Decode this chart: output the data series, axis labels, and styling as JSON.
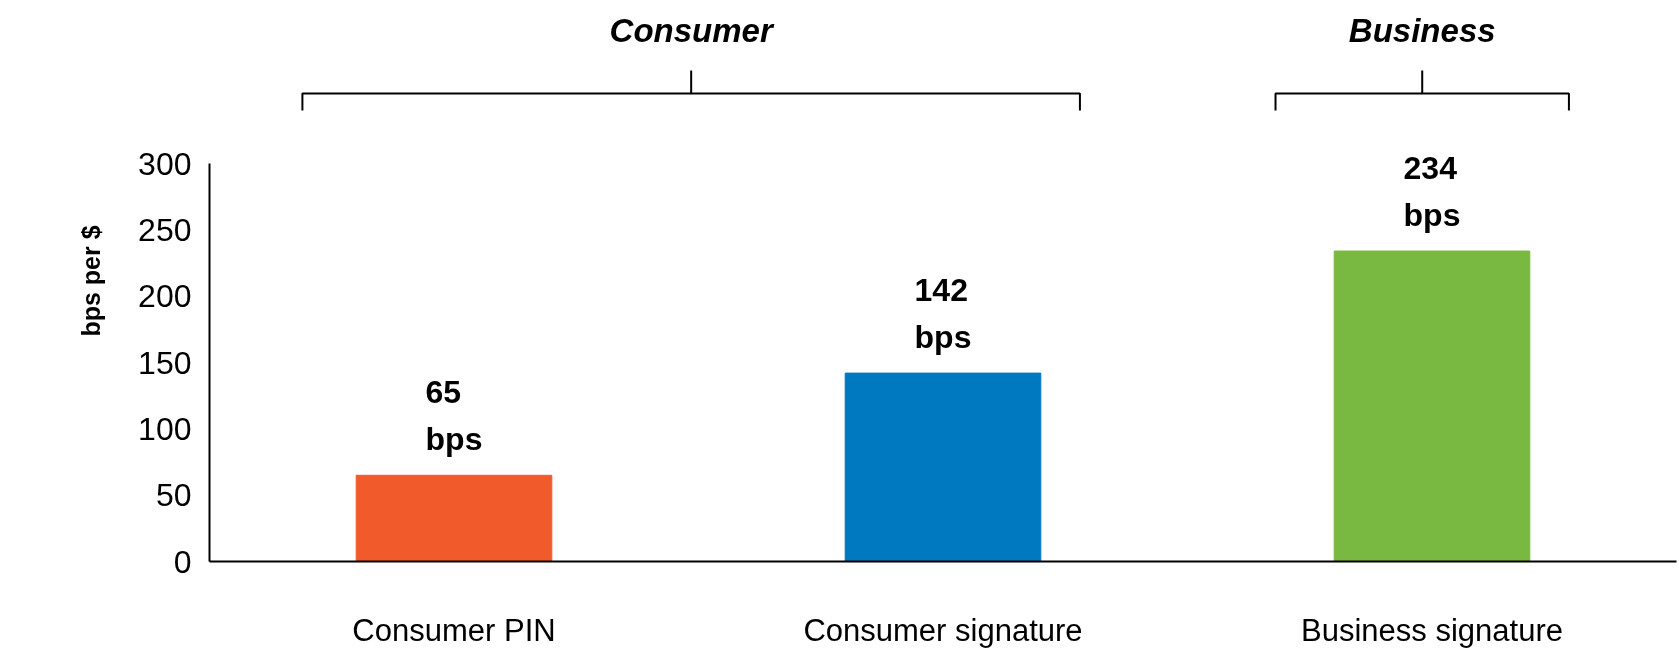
{
  "chart_data": {
    "type": "bar",
    "categories": [
      "Consumer PIN",
      "Consumer signature",
      "Business signature"
    ],
    "values": [
      65,
      142,
      234
    ],
    "colors": [
      "#f15a2b",
      "#0079c1",
      "#7ab941"
    ],
    "value_labels": [
      "65 bps",
      "142 bps",
      "234 bps"
    ],
    "ylabel": "bps per $",
    "ylim": [
      0,
      300
    ],
    "yticks": [
      0,
      50,
      100,
      150,
      200,
      250,
      300
    ],
    "grid": false,
    "annotations": [
      "Consumer",
      "Business"
    ]
  }
}
